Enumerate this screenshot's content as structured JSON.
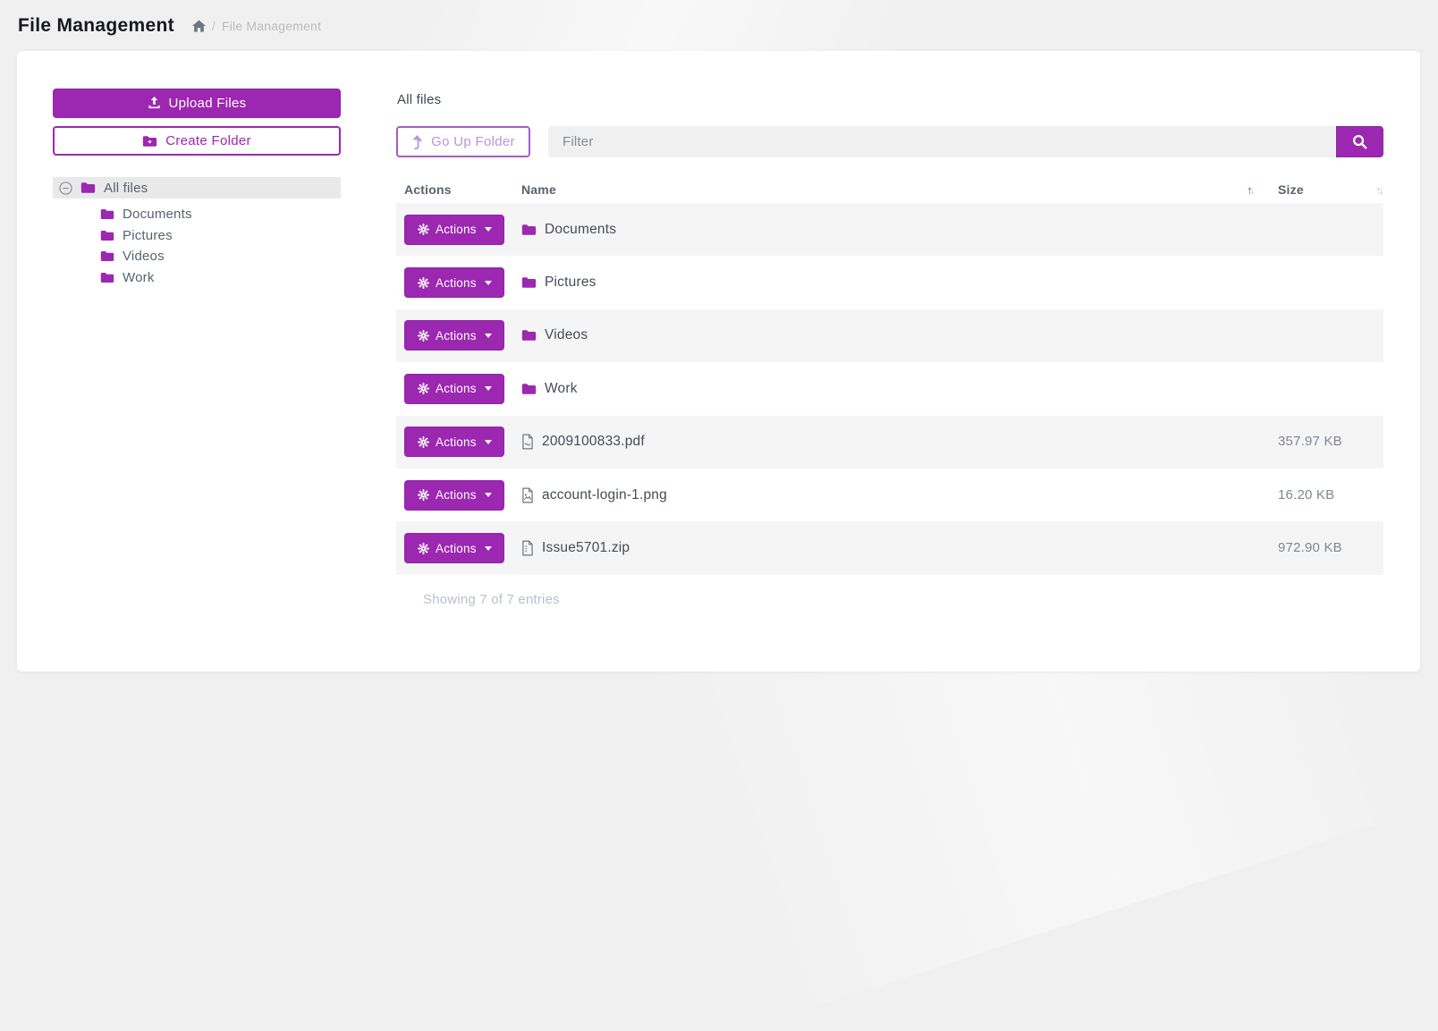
{
  "page": {
    "title": "File Management"
  },
  "breadcrumb": {
    "separator": "/",
    "current": "File Management"
  },
  "colors": {
    "accent": "#9c27b0",
    "accent_border": "#8e24aa",
    "stripe": "#f5f5f6",
    "selected_tree": "#e9e9ea"
  },
  "sidebar": {
    "upload_button_label": "Upload Files",
    "create_folder_button_label": "Create Folder",
    "tree": {
      "root_label": "All files",
      "children": [
        "Documents",
        "Pictures",
        "Videos",
        "Work"
      ]
    }
  },
  "main": {
    "current_folder_label": "All files",
    "go_up_button_label": "Go Up Folder",
    "filter_placeholder": "Filter",
    "table": {
      "columns": {
        "actions": "Actions",
        "name": "Name",
        "size": "Size"
      },
      "sort": {
        "name_active": "ascending",
        "size_active": "none"
      },
      "actions_button_label": "Actions",
      "rows": [
        {
          "type": "folder",
          "name": "Documents",
          "size": ""
        },
        {
          "type": "folder",
          "name": "Pictures",
          "size": ""
        },
        {
          "type": "folder",
          "name": "Videos",
          "size": ""
        },
        {
          "type": "folder",
          "name": "Work",
          "size": ""
        },
        {
          "type": "pdf",
          "name": "2009100833.pdf",
          "size": "357.97 KB"
        },
        {
          "type": "image",
          "name": "account-login-1.png",
          "size": "16.20 KB"
        },
        {
          "type": "zip",
          "name": "Issue5701.zip",
          "size": "972.90 KB"
        }
      ]
    },
    "footer_text": "Showing 7 of 7 entries"
  }
}
